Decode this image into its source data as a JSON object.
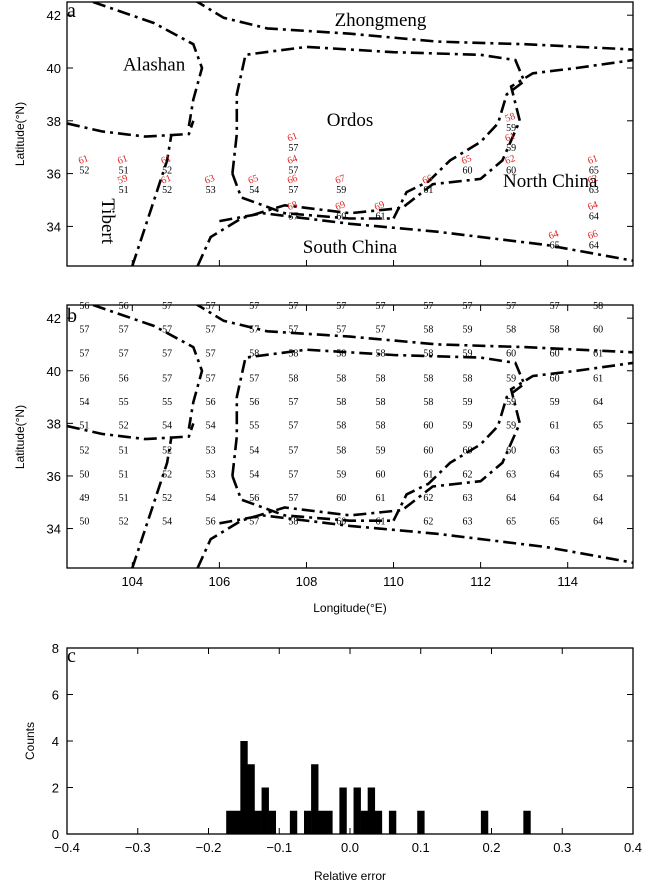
{
  "colors": {
    "observed": "#e02020",
    "predicted": "#000000",
    "boundary": "#000000",
    "bar": "#000000"
  },
  "panels": {
    "a": {
      "letter": "a"
    },
    "b": {
      "letter": "b"
    },
    "c": {
      "letter": "c"
    }
  },
  "axes": {
    "latitude_label": "Latitude(°N)",
    "longitude_label": "Longitude(°E)",
    "relative_error_label": "Relative error",
    "counts_label": "Counts"
  },
  "map": {
    "lon_range": [
      102.5,
      115.5
    ],
    "lat_range_a": [
      32.5,
      42.5
    ],
    "lat_range_b": [
      32.5,
      42.5
    ],
    "lon_ticks": [
      "104",
      "106",
      "108",
      "110",
      "112",
      "114"
    ],
    "lat_ticks": [
      "34",
      "36",
      "38",
      "40",
      "42"
    ],
    "regions": [
      {
        "name": "Zhongmeng",
        "lon": 109.7,
        "lat": 41.6
      },
      {
        "name": "Alashan",
        "lon": 104.5,
        "lat": 39.9
      },
      {
        "name": "Ordos",
        "lon": 109.0,
        "lat": 37.8
      },
      {
        "name": "North China",
        "lon": 113.6,
        "lat": 35.5
      },
      {
        "name": "Tibert",
        "lon": 103.3,
        "lat": 34.2
      },
      {
        "name": "South China",
        "lon": 109.0,
        "lat": 33.0
      }
    ],
    "boundaries": [
      [
        [
          105.4,
          42.6
        ],
        [
          106.1,
          41.9
        ],
        [
          107.1,
          41.5
        ],
        [
          109.0,
          41.3
        ],
        [
          111.0,
          41.0
        ],
        [
          113.0,
          40.9
        ],
        [
          115.5,
          40.7
        ]
      ],
      [
        [
          103.1,
          42.5
        ],
        [
          104.5,
          41.7
        ],
        [
          105.4,
          40.9
        ],
        [
          105.6,
          40.0
        ],
        [
          105.4,
          38.8
        ],
        [
          105.3,
          37.8
        ]
      ],
      [
        [
          102.5,
          37.9
        ],
        [
          103.3,
          37.6
        ],
        [
          104.3,
          37.4
        ],
        [
          105.3,
          37.5
        ],
        [
          105.4,
          38.0
        ]
      ],
      [
        [
          104.0,
          32.5
        ],
        [
          104.3,
          34.0
        ],
        [
          104.5,
          35.0
        ],
        [
          104.8,
          36.5
        ],
        [
          104.9,
          37.5
        ]
      ],
      [
        [
          105.5,
          32.5
        ],
        [
          105.8,
          33.6
        ],
        [
          106.5,
          34.3
        ],
        [
          107.5,
          34.8
        ],
        [
          109.0,
          34.5
        ],
        [
          110.2,
          34.7
        ],
        [
          110.9,
          35.6
        ],
        [
          112.0,
          35.8
        ],
        [
          112.5,
          36.5
        ],
        [
          112.9,
          38.0
        ],
        [
          112.7,
          39.3
        ],
        [
          113.2,
          39.8
        ],
        [
          114.2,
          40.0
        ],
        [
          115.5,
          40.3
        ]
      ],
      [
        [
          106.3,
          36.0
        ],
        [
          106.4,
          37.5
        ],
        [
          106.4,
          39.0
        ],
        [
          106.6,
          40.5
        ],
        [
          108.0,
          40.8
        ],
        [
          110.0,
          40.6
        ],
        [
          112.0,
          40.5
        ],
        [
          112.8,
          40.3
        ],
        [
          113.0,
          39.5
        ],
        [
          112.6,
          39.0
        ],
        [
          112.4,
          37.9
        ],
        [
          112.0,
          37.2
        ],
        [
          111.3,
          36.5
        ],
        [
          110.8,
          35.7
        ],
        [
          110.3,
          35.3
        ],
        [
          110.0,
          34.3
        ]
      ],
      [
        [
          106.3,
          36.0
        ],
        [
          106.5,
          35.1
        ],
        [
          107.5,
          34.5
        ],
        [
          109.0,
          34.3
        ],
        [
          110.0,
          34.3
        ]
      ],
      [
        [
          106.0,
          34.2
        ],
        [
          107.0,
          34.5
        ],
        [
          109.0,
          34.1
        ],
        [
          111.0,
          33.8
        ],
        [
          113.5,
          33.3
        ],
        [
          115.5,
          32.7
        ]
      ]
    ],
    "panel_a_points": [
      {
        "lon": 102.9,
        "lat": 36.35,
        "obs": "61",
        "pred": "52"
      },
      {
        "lon": 103.8,
        "lat": 36.35,
        "obs": "61",
        "pred": "51"
      },
      {
        "lon": 104.8,
        "lat": 36.35,
        "obs": "61",
        "pred": "52"
      },
      {
        "lon": 103.8,
        "lat": 35.6,
        "obs": "59",
        "pred": "51"
      },
      {
        "lon": 104.8,
        "lat": 35.6,
        "obs": "61",
        "pred": "52"
      },
      {
        "lon": 105.8,
        "lat": 35.6,
        "obs": "63",
        "pred": "53"
      },
      {
        "lon": 106.8,
        "lat": 35.6,
        "obs": "65",
        "pred": "54"
      },
      {
        "lon": 107.7,
        "lat": 35.6,
        "obs": "66",
        "pred": "57"
      },
      {
        "lon": 108.8,
        "lat": 35.6,
        "obs": "67",
        "pred": "59"
      },
      {
        "lon": 107.7,
        "lat": 37.2,
        "obs": "61",
        "pred": "57"
      },
      {
        "lon": 107.7,
        "lat": 36.35,
        "obs": "64",
        "pred": "57"
      },
      {
        "lon": 107.7,
        "lat": 34.6,
        "obs": "68",
        "pred": "57"
      },
      {
        "lon": 108.8,
        "lat": 34.6,
        "obs": "69",
        "pred": "60"
      },
      {
        "lon": 109.7,
        "lat": 34.6,
        "obs": "69",
        "pred": "61"
      },
      {
        "lon": 110.8,
        "lat": 35.6,
        "obs": "66",
        "pred": "61"
      },
      {
        "lon": 111.7,
        "lat": 36.35,
        "obs": "65",
        "pred": "60"
      },
      {
        "lon": 112.7,
        "lat": 36.35,
        "obs": "62",
        "pred": "60"
      },
      {
        "lon": 112.7,
        "lat": 37.2,
        "obs": "61",
        "pred": "59"
      },
      {
        "lon": 112.7,
        "lat": 37.95,
        "obs": "58",
        "pred": "59"
      },
      {
        "lon": 114.6,
        "lat": 36.35,
        "obs": "61",
        "pred": "65"
      },
      {
        "lon": 114.6,
        "lat": 35.6,
        "obs": "62",
        "pred": "63"
      },
      {
        "lon": 114.6,
        "lat": 34.6,
        "obs": "64",
        "pred": "64"
      },
      {
        "lon": 113.7,
        "lat": 33.5,
        "obs": "64",
        "pred": "65"
      },
      {
        "lon": 114.6,
        "lat": 33.5,
        "obs": "66",
        "pred": "64"
      }
    ],
    "panel_b_grid": {
      "lons": [
        102.9,
        103.8,
        104.8,
        105.8,
        106.8,
        107.7,
        108.8,
        109.7,
        110.8,
        111.7,
        112.7,
        113.7,
        114.7
      ],
      "lats": [
        42.5,
        41.6,
        40.7,
        39.75,
        38.85,
        37.95,
        37.0,
        36.1,
        35.2,
        34.3,
        33.4
      ],
      "rows": [
        [
          "56",
          "56",
          "57",
          "57",
          "57",
          "57",
          "57",
          "57",
          "57",
          "57",
          "57",
          "57",
          "58"
        ],
        [
          "57",
          "57",
          "57",
          "57",
          "57",
          "57",
          "57",
          "57",
          "58",
          "59",
          "58",
          "58",
          "60"
        ],
        [
          "57",
          "57",
          "57",
          "57",
          "58",
          "58",
          "58",
          "58",
          "58",
          "59",
          "60",
          "60",
          "61"
        ],
        [
          "56",
          "56",
          "57",
          "57",
          "57",
          "58",
          "58",
          "58",
          "58",
          "58",
          "59",
          "60",
          "61"
        ],
        [
          "54",
          "55",
          "55",
          "56",
          "56",
          "57",
          "58",
          "58",
          "58",
          "59",
          "59",
          "59",
          "64"
        ],
        [
          "51",
          "52",
          "54",
          "54",
          "55",
          "57",
          "58",
          "58",
          "60",
          "59",
          "59",
          "61",
          "65"
        ],
        [
          "52",
          "51",
          "52",
          "53",
          "54",
          "57",
          "58",
          "59",
          "60",
          "60",
          "60",
          "63",
          "65"
        ],
        [
          "50",
          "51",
          "52",
          "53",
          "54",
          "57",
          "59",
          "60",
          "61",
          "62",
          "63",
          "64",
          "65"
        ],
        [
          "49",
          "51",
          "52",
          "54",
          "56",
          "57",
          "60",
          "61",
          "62",
          "63",
          "64",
          "64",
          "64"
        ],
        [
          "50",
          "52",
          "54",
          "56",
          "57",
          "58",
          "60",
          "61",
          "62",
          "63",
          "65",
          "65",
          "64"
        ],
        [
          "",
          "",
          "",
          "",
          "",
          "",
          "",
          "",
          "",
          "",
          "",
          "",
          ""
        ]
      ]
    }
  },
  "chart_data": {
    "type": "bar",
    "title": "",
    "xlabel": "Relative error",
    "ylabel": "Counts",
    "xlim": [
      -0.4,
      0.4
    ],
    "ylim": [
      0,
      8
    ],
    "x_ticks": [
      "-0.4",
      "-0.3",
      "-0.2",
      "-0.1",
      "0.0",
      "0.1",
      "0.2",
      "0.3",
      "0.4"
    ],
    "y_ticks": [
      "0",
      "2",
      "4",
      "6",
      "8"
    ],
    "bin_width": 0.01,
    "bins": [
      {
        "x": -0.17,
        "count": 1
      },
      {
        "x": -0.16,
        "count": 1
      },
      {
        "x": -0.15,
        "count": 4
      },
      {
        "x": -0.14,
        "count": 3
      },
      {
        "x": -0.13,
        "count": 1
      },
      {
        "x": -0.12,
        "count": 2
      },
      {
        "x": -0.11,
        "count": 1
      },
      {
        "x": -0.08,
        "count": 1
      },
      {
        "x": -0.06,
        "count": 1
      },
      {
        "x": -0.05,
        "count": 3
      },
      {
        "x": -0.04,
        "count": 1
      },
      {
        "x": -0.03,
        "count": 1
      },
      {
        "x": -0.01,
        "count": 2
      },
      {
        "x": 0.01,
        "count": 2
      },
      {
        "x": 0.02,
        "count": 1
      },
      {
        "x": 0.03,
        "count": 2
      },
      {
        "x": 0.04,
        "count": 1
      },
      {
        "x": 0.06,
        "count": 1
      },
      {
        "x": 0.1,
        "count": 1
      },
      {
        "x": 0.19,
        "count": 1
      },
      {
        "x": 0.25,
        "count": 1
      }
    ]
  }
}
